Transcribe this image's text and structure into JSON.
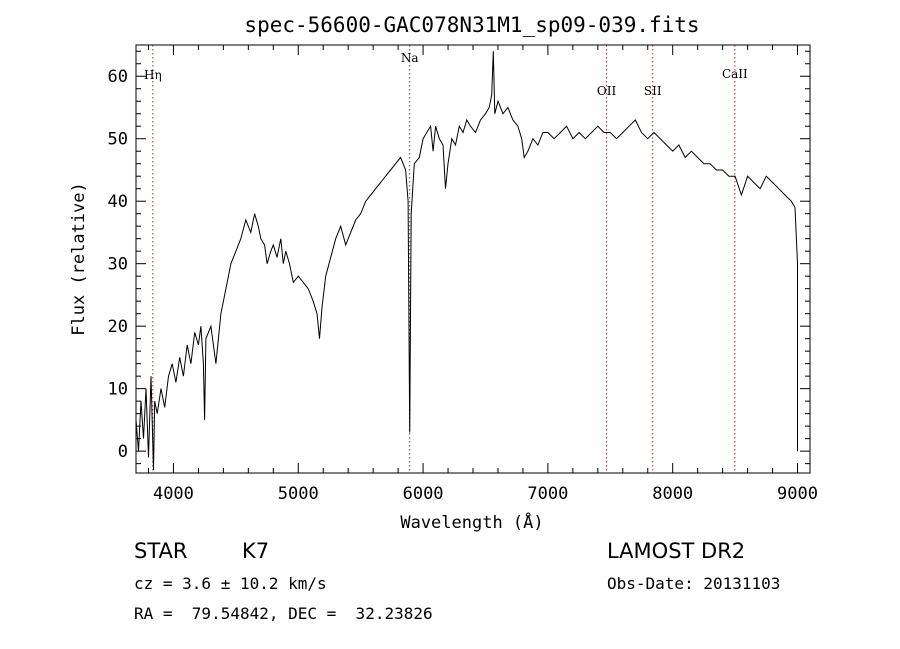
{
  "chart_data": {
    "type": "line",
    "title": "spec-56600-GAC078N31M1_sp09-039.fits",
    "xlabel": "Wavelength (Å)",
    "ylabel": "Flux (relative)",
    "xlim": [
      3700,
      9100
    ],
    "ylim": [
      -3.5,
      65
    ],
    "xticks": [
      "4000",
      "5000",
      "6000",
      "7000",
      "8000",
      "9000"
    ],
    "yticks": [
      "0",
      "10",
      "20",
      "30",
      "40",
      "50",
      "60"
    ],
    "line_color": "#000000",
    "marker_color": "#b22222",
    "lines": [
      {
        "label": "Hη",
        "x": 3835
      },
      {
        "label": "Na",
        "x": 5893
      },
      {
        "label": "OII",
        "x": 7470
      },
      {
        "label": "SII",
        "x": 7840
      },
      {
        "label": "CaII",
        "x": 8498
      }
    ],
    "series": [
      {
        "values": [
          [
            3700,
            5
          ],
          [
            3720,
            0
          ],
          [
            3740,
            8
          ],
          [
            3760,
            2
          ],
          [
            3780,
            10
          ],
          [
            3800,
            -1
          ],
          [
            3820,
            12
          ],
          [
            3840,
            -3
          ],
          [
            3850,
            8
          ],
          [
            3870,
            6
          ],
          [
            3900,
            10
          ],
          [
            3930,
            7
          ],
          [
            3960,
            12
          ],
          [
            3990,
            14
          ],
          [
            4020,
            11
          ],
          [
            4050,
            15
          ],
          [
            4080,
            12
          ],
          [
            4110,
            17
          ],
          [
            4140,
            14
          ],
          [
            4170,
            19
          ],
          [
            4200,
            17
          ],
          [
            4220,
            20
          ],
          [
            4240,
            14
          ],
          [
            4250,
            5
          ],
          [
            4260,
            18
          ],
          [
            4300,
            20
          ],
          [
            4340,
            14
          ],
          [
            4380,
            22
          ],
          [
            4420,
            26
          ],
          [
            4460,
            30
          ],
          [
            4500,
            32
          ],
          [
            4540,
            34
          ],
          [
            4580,
            37
          ],
          [
            4620,
            35
          ],
          [
            4650,
            38
          ],
          [
            4680,
            36
          ],
          [
            4700,
            34
          ],
          [
            4730,
            33
          ],
          [
            4750,
            30
          ],
          [
            4780,
            32
          ],
          [
            4800,
            33
          ],
          [
            4830,
            31
          ],
          [
            4860,
            34
          ],
          [
            4880,
            30
          ],
          [
            4900,
            32
          ],
          [
            4930,
            30
          ],
          [
            4960,
            27
          ],
          [
            5000,
            28
          ],
          [
            5040,
            27
          ],
          [
            5080,
            26
          ],
          [
            5120,
            24
          ],
          [
            5150,
            22
          ],
          [
            5170,
            18
          ],
          [
            5190,
            23
          ],
          [
            5220,
            28
          ],
          [
            5260,
            31
          ],
          [
            5300,
            34
          ],
          [
            5340,
            36
          ],
          [
            5380,
            33
          ],
          [
            5420,
            35
          ],
          [
            5460,
            37
          ],
          [
            5500,
            38
          ],
          [
            5540,
            40
          ],
          [
            5580,
            41
          ],
          [
            5620,
            42
          ],
          [
            5660,
            43
          ],
          [
            5700,
            44
          ],
          [
            5740,
            45
          ],
          [
            5780,
            46
          ],
          [
            5820,
            47
          ],
          [
            5860,
            45
          ],
          [
            5880,
            40
          ],
          [
            5893,
            3
          ],
          [
            5905,
            38
          ],
          [
            5930,
            46
          ],
          [
            5970,
            47
          ],
          [
            6000,
            50
          ],
          [
            6030,
            51
          ],
          [
            6060,
            52
          ],
          [
            6080,
            48
          ],
          [
            6100,
            52
          ],
          [
            6130,
            50
          ],
          [
            6160,
            49
          ],
          [
            6180,
            42
          ],
          [
            6200,
            46
          ],
          [
            6230,
            50
          ],
          [
            6260,
            49
          ],
          [
            6290,
            52
          ],
          [
            6320,
            51
          ],
          [
            6350,
            53
          ],
          [
            6380,
            52
          ],
          [
            6420,
            51
          ],
          [
            6460,
            53
          ],
          [
            6500,
            54
          ],
          [
            6530,
            55
          ],
          [
            6550,
            57
          ],
          [
            6563,
            64
          ],
          [
            6575,
            54
          ],
          [
            6600,
            56
          ],
          [
            6640,
            54
          ],
          [
            6680,
            55
          ],
          [
            6720,
            53
          ],
          [
            6760,
            52
          ],
          [
            6790,
            50
          ],
          [
            6810,
            47
          ],
          [
            6840,
            48
          ],
          [
            6880,
            50
          ],
          [
            6920,
            49
          ],
          [
            6960,
            51
          ],
          [
            7000,
            51
          ],
          [
            7050,
            50
          ],
          [
            7100,
            51
          ],
          [
            7150,
            52
          ],
          [
            7200,
            50
          ],
          [
            7250,
            51
          ],
          [
            7300,
            50
          ],
          [
            7350,
            51
          ],
          [
            7400,
            52
          ],
          [
            7450,
            51
          ],
          [
            7500,
            51
          ],
          [
            7550,
            50
          ],
          [
            7600,
            51
          ],
          [
            7650,
            52
          ],
          [
            7700,
            53
          ],
          [
            7750,
            51
          ],
          [
            7800,
            50
          ],
          [
            7850,
            51
          ],
          [
            7900,
            50
          ],
          [
            7950,
            49
          ],
          [
            8000,
            48
          ],
          [
            8050,
            49
          ],
          [
            8100,
            47
          ],
          [
            8150,
            48
          ],
          [
            8200,
            47
          ],
          [
            8250,
            46
          ],
          [
            8300,
            46
          ],
          [
            8350,
            45
          ],
          [
            8400,
            45
          ],
          [
            8450,
            44
          ],
          [
            8500,
            44
          ],
          [
            8550,
            41
          ],
          [
            8600,
            44
          ],
          [
            8650,
            43
          ],
          [
            8700,
            42
          ],
          [
            8750,
            44
          ],
          [
            8800,
            43
          ],
          [
            8850,
            42
          ],
          [
            8900,
            41
          ],
          [
            8950,
            40
          ],
          [
            8980,
            39
          ],
          [
            9000,
            30
          ],
          [
            9000,
            0
          ]
        ]
      }
    ]
  },
  "info": {
    "object_class": "STAR",
    "subclass": "K7",
    "survey": "LAMOST DR2",
    "redshift": "cz = 3.6 ± 10.2 km/s",
    "obs_date": "Obs-Date: 20131103",
    "coords": "RA =  79.54842, DEC =  32.23826"
  }
}
